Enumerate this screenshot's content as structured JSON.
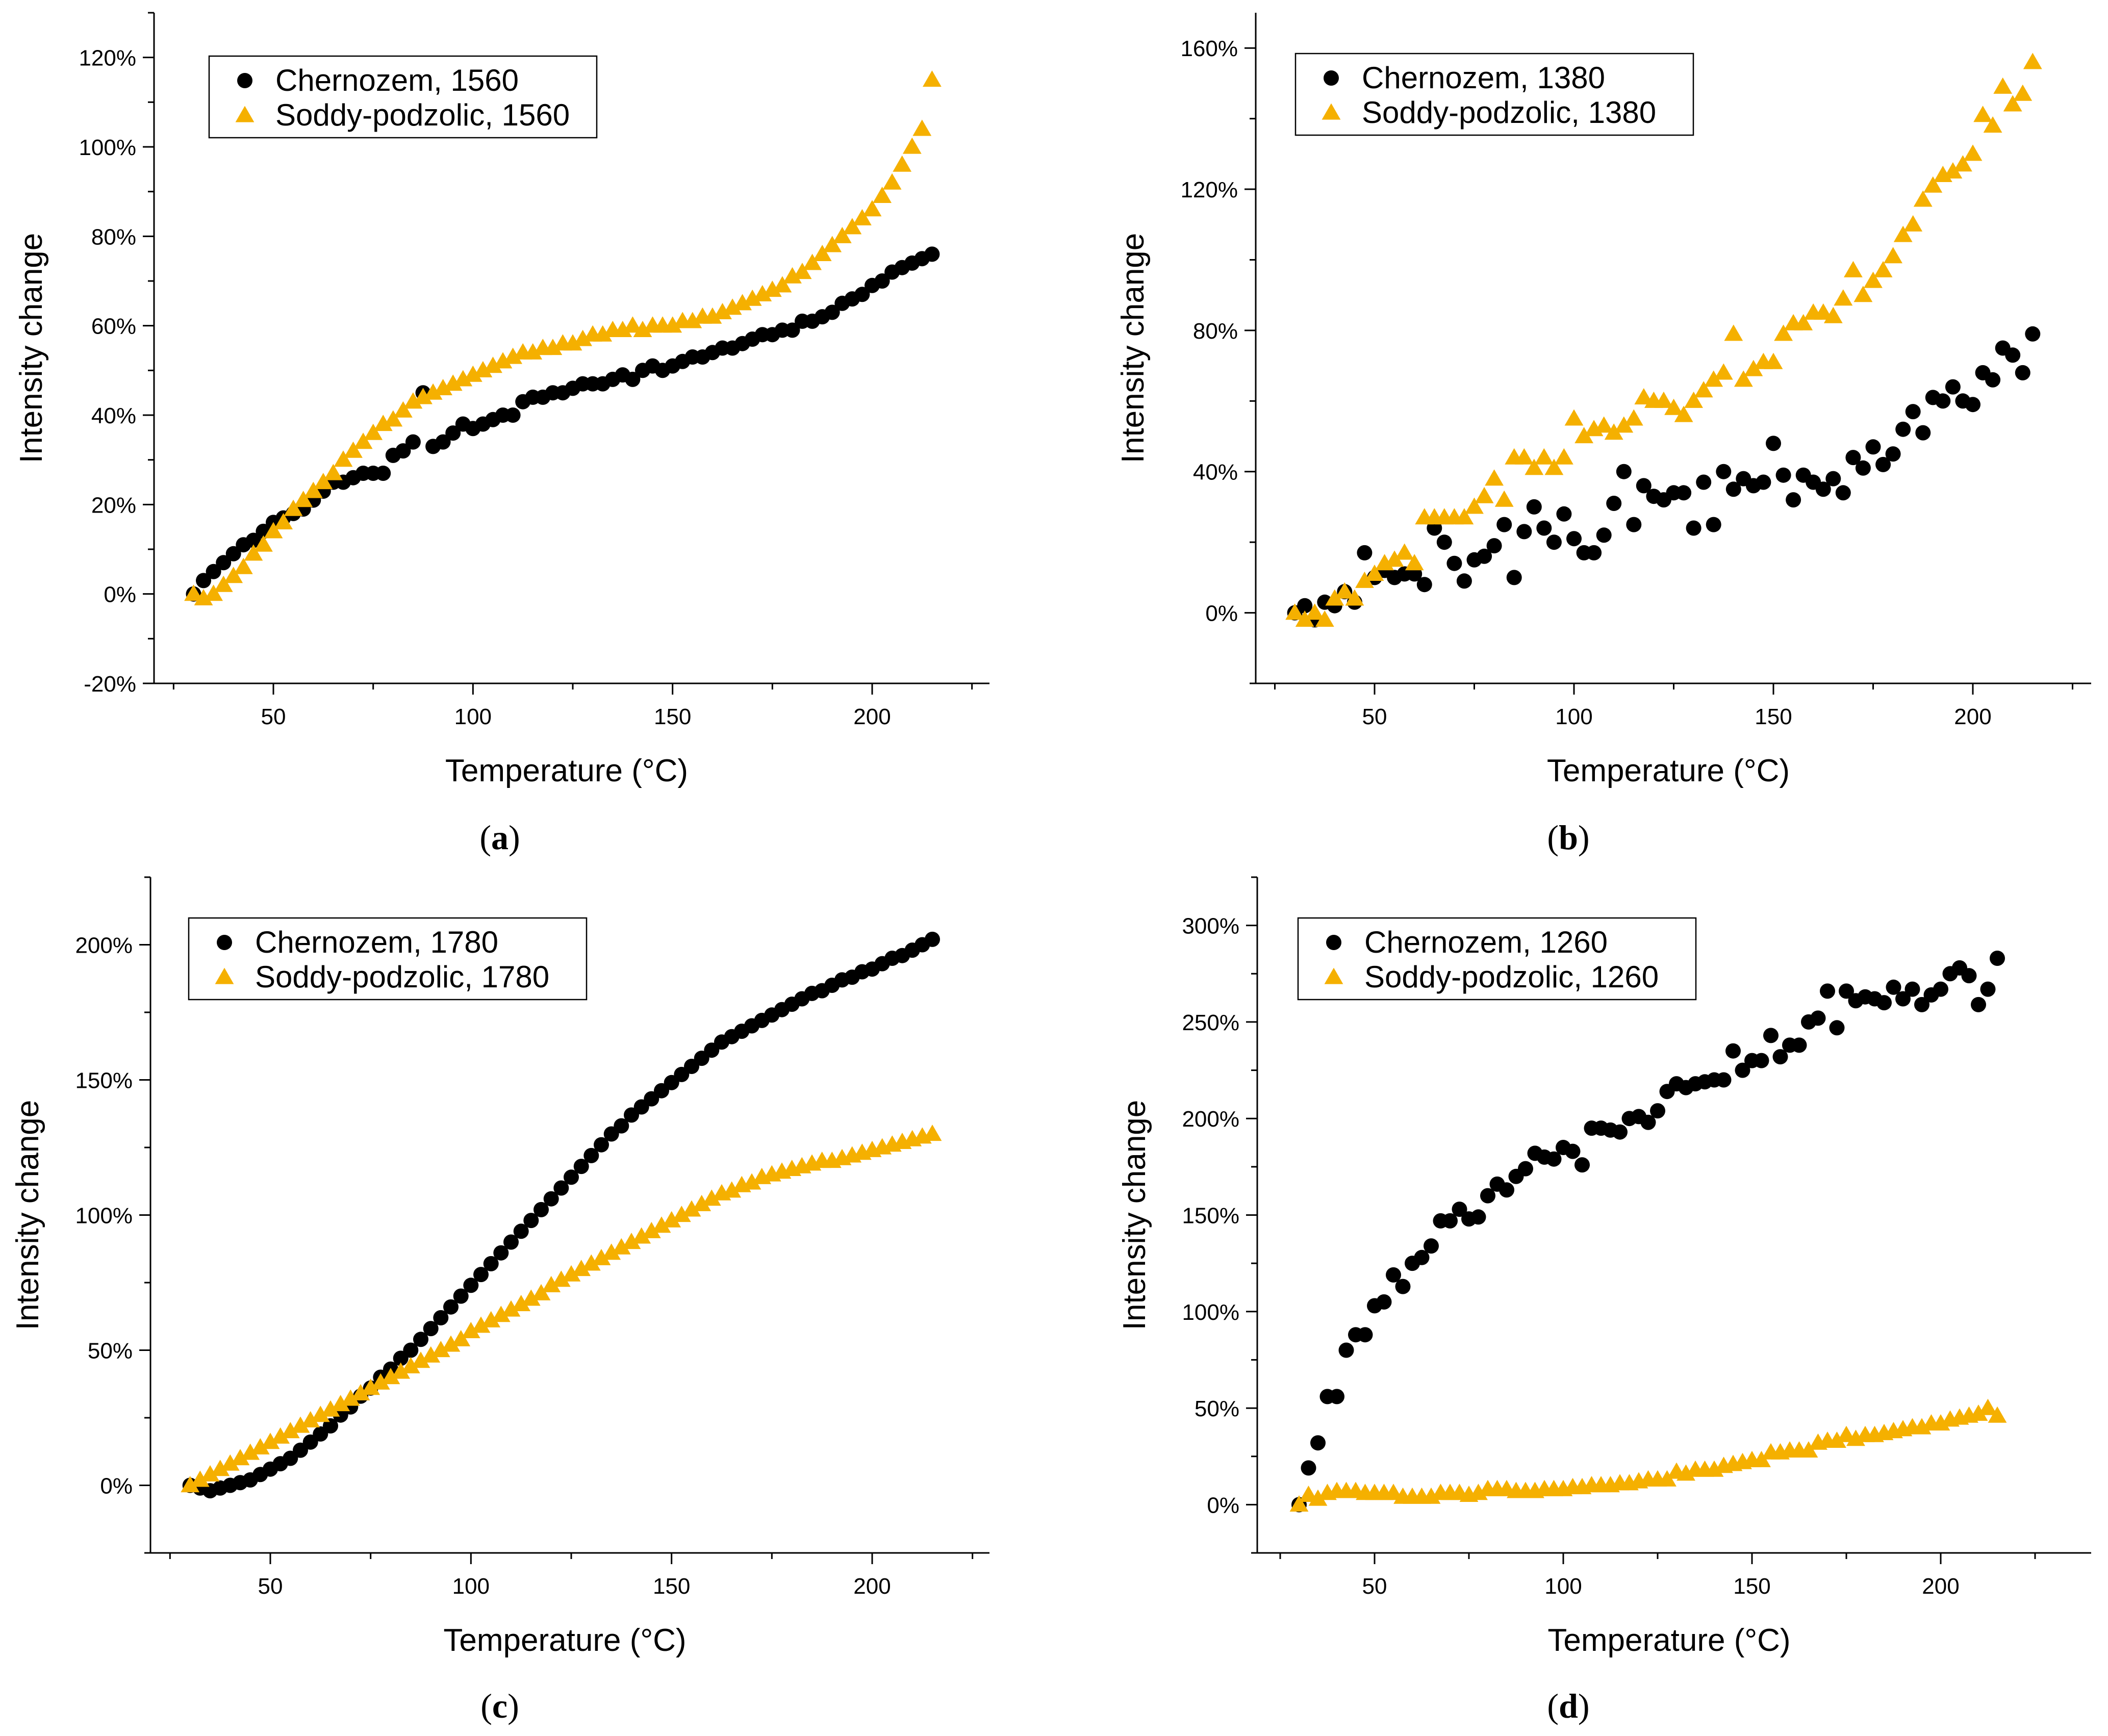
{
  "colors": {
    "chernozem": "#000000",
    "soddy": "#f5b000",
    "axis": "#000000"
  },
  "chart_data": [
    {
      "id": "a",
      "type": "scatter",
      "caption": "a",
      "xlabel": "Temperature (°C)",
      "ylabel": "Intensity change",
      "xlim": [
        22,
        228
      ],
      "ylim": [
        -20,
        130
      ],
      "xticks": [
        50,
        100,
        150,
        200
      ],
      "yticks": [
        -20,
        0,
        20,
        40,
        60,
        80,
        100,
        120
      ],
      "yunit": "%",
      "legend_position": "top-left",
      "series": [
        {
          "name": "Chernozem, 1560",
          "marker": "circle",
          "color": "#000000",
          "start": 30,
          "step": 2.5,
          "values": [
            0,
            3,
            5,
            7,
            9,
            11,
            12,
            14,
            16,
            17,
            18,
            19,
            21,
            23,
            25,
            25,
            26,
            27,
            27,
            27,
            31,
            32,
            34,
            45,
            33,
            34,
            36,
            38,
            37,
            38,
            39,
            40,
            40,
            43,
            44,
            44,
            45,
            45,
            46,
            47,
            47,
            47,
            48,
            49,
            48,
            50,
            51,
            50,
            51,
            52,
            53,
            53,
            54,
            55,
            55,
            56,
            57,
            58,
            58,
            59,
            59,
            61,
            61,
            62,
            63,
            65,
            66,
            67,
            69,
            70,
            72,
            73,
            74,
            75,
            76
          ]
        },
        {
          "name": "Soddy-podzolic, 1560",
          "marker": "triangle",
          "color": "#f5b000",
          "start": 30,
          "step": 2.5,
          "values": [
            0,
            -1,
            0,
            2,
            4,
            6,
            9,
            11,
            14,
            16,
            19,
            21,
            23,
            25,
            27,
            30,
            32,
            34,
            36,
            38,
            39,
            41,
            43,
            44,
            45,
            46,
            47,
            48,
            49,
            50,
            51,
            52,
            53,
            54,
            54,
            55,
            55,
            56,
            56,
            57,
            58,
            58,
            59,
            59,
            60,
            59,
            60,
            60,
            60,
            61,
            61,
            62,
            62,
            63,
            64,
            65,
            66,
            67,
            68,
            69,
            71,
            72,
            74,
            76,
            78,
            80,
            82,
            84,
            86,
            89,
            92,
            96,
            100,
            104,
            115
          ]
        }
      ]
    },
    {
      "id": "b",
      "type": "scatter",
      "caption": "b",
      "xlabel": "Temperature (°C)",
      "ylabel": "Intensity change",
      "xlim": [
        22,
        228
      ],
      "ylim": [
        -20,
        170
      ],
      "xticks": [
        50,
        100,
        150,
        200
      ],
      "yticks": [
        0,
        40,
        80,
        120,
        160
      ],
      "yunit": "%",
      "legend_position": "top-left",
      "series": [
        {
          "name": "Chernozem, 1380",
          "marker": "circle",
          "color": "#000000",
          "start": 30,
          "step": 2.5,
          "values": [
            0,
            2,
            -2,
            3,
            2,
            6,
            3,
            17,
            10,
            12,
            10,
            11,
            11,
            8,
            24,
            20,
            14,
            9,
            15,
            16,
            19,
            25,
            10,
            23,
            30,
            24,
            20,
            28,
            21,
            17,
            17,
            22,
            31,
            40,
            25,
            36,
            33,
            32,
            34,
            34,
            24,
            37,
            25,
            40,
            35,
            38,
            36,
            37,
            48,
            39,
            32,
            39,
            37,
            35,
            38,
            34,
            44,
            41,
            47,
            42,
            45,
            52,
            57,
            51,
            61,
            60,
            64,
            60,
            59,
            68,
            66,
            75,
            73,
            68,
            79
          ]
        },
        {
          "name": "Soddy-podzolic, 1380",
          "marker": "triangle",
          "color": "#f5b000",
          "start": 30,
          "step": 2.5,
          "values": [
            0,
            -2,
            0,
            -2,
            4,
            6,
            4,
            9,
            11,
            14,
            15,
            17,
            14,
            27,
            27,
            27,
            27,
            27,
            30,
            33,
            38,
            32,
            44,
            44,
            41,
            44,
            41,
            44,
            55,
            50,
            52,
            53,
            51,
            53,
            55,
            61,
            60,
            60,
            58,
            56,
            60,
            63,
            66,
            68,
            79,
            66,
            69,
            71,
            71,
            79,
            82,
            82,
            85,
            85,
            84,
            89,
            97,
            90,
            94,
            97,
            101,
            107,
            110,
            117,
            121,
            124,
            125,
            127,
            130,
            141,
            138,
            149,
            144,
            147,
            156
          ]
        }
      ]
    },
    {
      "id": "c",
      "type": "scatter",
      "caption": "c",
      "xlabel": "Temperature (°C)",
      "ylabel": "Intensity change",
      "xlim": [
        22,
        228
      ],
      "ylim": [
        -25,
        225
      ],
      "xticks": [
        50,
        100,
        150,
        200
      ],
      "yticks": [
        0,
        50,
        100,
        150,
        200
      ],
      "yunit": "%",
      "legend_position": "top-left",
      "series": [
        {
          "name": "Chernozem, 1780",
          "marker": "circle",
          "color": "#000000",
          "start": 30,
          "step": 2.5,
          "values": [
            0,
            -1,
            -2,
            -1,
            0,
            1,
            2,
            4,
            6,
            8,
            10,
            13,
            16,
            19,
            22,
            26,
            29,
            33,
            36,
            40,
            43,
            47,
            50,
            54,
            58,
            62,
            66,
            70,
            74,
            78,
            82,
            86,
            90,
            94,
            98,
            102,
            106,
            110,
            114,
            118,
            122,
            126,
            130,
            133,
            137,
            140,
            143,
            146,
            149,
            152,
            155,
            158,
            161,
            164,
            166,
            168,
            170,
            172,
            174,
            176,
            178,
            180,
            182,
            183,
            185,
            187,
            188,
            190,
            191,
            193,
            195,
            196,
            198,
            200,
            202
          ]
        },
        {
          "name": "Soddy-podzolic, 1780",
          "marker": "triangle",
          "color": "#f5b000",
          "start": 30,
          "step": 2.5,
          "values": [
            0,
            2,
            4,
            6,
            8,
            10,
            12,
            14,
            16,
            18,
            20,
            22,
            24,
            26,
            28,
            30,
            32,
            34,
            36,
            38,
            40,
            42,
            44,
            46,
            48,
            50,
            52,
            54,
            57,
            59,
            61,
            63,
            65,
            67,
            69,
            71,
            74,
            76,
            78,
            80,
            82,
            84,
            86,
            88,
            90,
            92,
            94,
            96,
            98,
            100,
            102,
            104,
            106,
            108,
            109,
            111,
            112,
            114,
            115,
            116,
            117,
            118,
            119,
            120,
            120,
            121,
            122,
            123,
            124,
            125,
            126,
            127,
            128,
            129,
            130
          ]
        }
      ]
    },
    {
      "id": "d",
      "type": "scatter",
      "caption": "d",
      "xlabel": "Temperature (°C)",
      "ylabel": "Intensity change",
      "xlim": [
        22,
        228
      ],
      "ylim": [
        -25,
        325
      ],
      "xticks": [
        50,
        100,
        150,
        200
      ],
      "yticks": [
        0,
        50,
        100,
        150,
        200,
        250,
        300
      ],
      "yunit": "%",
      "legend_position": "top-left",
      "series": [
        {
          "name": "Chernozem, 1260",
          "marker": "circle",
          "color": "#000000",
          "start": 30,
          "step": 2.5,
          "values": [
            0,
            19,
            32,
            56,
            56,
            80,
            88,
            88,
            103,
            105,
            119,
            113,
            125,
            128,
            134,
            147,
            147,
            153,
            148,
            149,
            160,
            166,
            163,
            170,
            174,
            182,
            180,
            179,
            185,
            183,
            176,
            195,
            195,
            194,
            193,
            200,
            201,
            198,
            204,
            214,
            218,
            216,
            218,
            219,
            220,
            220,
            235,
            225,
            230,
            230,
            243,
            232,
            238,
            238,
            250,
            252,
            266,
            247,
            266,
            261,
            263,
            262,
            260,
            268,
            262,
            267,
            259,
            264,
            267,
            275,
            278,
            274,
            259,
            267,
            283
          ]
        },
        {
          "name": "Soddy-podzolic, 1260",
          "marker": "triangle",
          "color": "#f5b000",
          "start": 30,
          "step": 2.5,
          "values": [
            0,
            5,
            3,
            6,
            7,
            7,
            7,
            6,
            6,
            6,
            6,
            4,
            4,
            4,
            4,
            6,
            6,
            6,
            5,
            6,
            8,
            8,
            8,
            7,
            7,
            7,
            8,
            8,
            8,
            9,
            9,
            10,
            10,
            10,
            11,
            11,
            12,
            13,
            13,
            13,
            17,
            16,
            18,
            18,
            18,
            20,
            21,
            22,
            23,
            23,
            27,
            27,
            28,
            28,
            28,
            32,
            33,
            33,
            36,
            34,
            36,
            36,
            37,
            38,
            39,
            40,
            40,
            42,
            42,
            44,
            45,
            46,
            47,
            50,
            46
          ]
        }
      ]
    }
  ]
}
